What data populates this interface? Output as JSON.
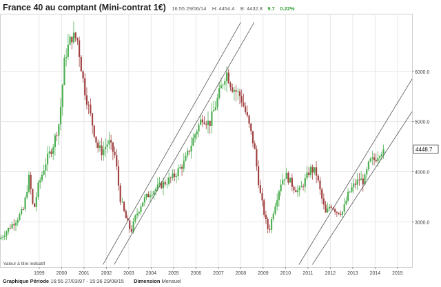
{
  "header": {
    "title": "France 40 au comptant (Mini-contrat 1€)",
    "time": "16:55 29/06/14",
    "high_label": "H:",
    "high": "4454.4",
    "bid_label": "B:",
    "bid": "4432.8",
    "change": "9.7",
    "change_pct": "0.22%"
  },
  "footer": {
    "period_label": "Graphique Période",
    "period_value": "16:55 27/03/97 - 15:36 29/08/15",
    "dimension_label": "Dimension",
    "dimension_value": "Mensuel"
  },
  "chart_data": {
    "type": "candlestick",
    "note_label": "Valeur à titre indicatif",
    "last_price_label": "4448.7",
    "last_price": 4448.7,
    "xlim": [
      1997.25,
      2015.65
    ],
    "ylim": [
      2100,
      7150
    ],
    "x_ticks": [
      {
        "label": "1999",
        "value": 1999.0
      },
      {
        "label": "2000",
        "value": 2000.0
      },
      {
        "label": "2001",
        "value": 2001.0
      },
      {
        "label": "2002",
        "value": 2002.0
      },
      {
        "label": "2003",
        "value": 2003.0
      },
      {
        "label": "2004",
        "value": 2004.0
      },
      {
        "label": "2005",
        "value": 2005.0
      },
      {
        "label": "2006",
        "value": 2006.0
      },
      {
        "label": "2007",
        "value": 2007.0
      },
      {
        "label": "2008",
        "value": 2008.0
      },
      {
        "label": "2009",
        "value": 2009.0
      },
      {
        "label": "2010",
        "value": 2010.0
      },
      {
        "label": "2011",
        "value": 2011.0
      },
      {
        "label": "2012",
        "value": 2012.0
      },
      {
        "label": "2013",
        "value": 2013.0
      },
      {
        "label": "2014",
        "value": 2014.0
      },
      {
        "label": "2015",
        "value": 2015.0
      }
    ],
    "y_ticks": [
      {
        "label": "3000.0",
        "value": 3000
      },
      {
        "label": "4000.0",
        "value": 4000
      },
      {
        "label": "5000.0",
        "value": 5000
      },
      {
        "label": "6000.0",
        "value": 6000
      }
    ],
    "anchors": [
      [
        1997.25,
        2660
      ],
      [
        1997.6,
        2850
      ],
      [
        1998.0,
        3050
      ],
      [
        1998.3,
        3250
      ],
      [
        1998.55,
        3900
      ],
      [
        1998.75,
        3200
      ],
      [
        1998.95,
        3700
      ],
      [
        1999.3,
        4200
      ],
      [
        1999.6,
        4500
      ],
      [
        1999.9,
        5000
      ],
      [
        2000.15,
        6300
      ],
      [
        2000.45,
        6700
      ],
      [
        2000.7,
        6650
      ],
      [
        2001.0,
        5700
      ],
      [
        2001.3,
        5100
      ],
      [
        2001.6,
        4500
      ],
      [
        2001.8,
        4400
      ],
      [
        2002.1,
        4600
      ],
      [
        2002.4,
        4300
      ],
      [
        2002.6,
        3500
      ],
      [
        2002.85,
        3100
      ],
      [
        2003.1,
        2800
      ],
      [
        2003.3,
        3100
      ],
      [
        2003.6,
        3400
      ],
      [
        2004.0,
        3600
      ],
      [
        2004.5,
        3750
      ],
      [
        2005.0,
        3900
      ],
      [
        2005.5,
        4200
      ],
      [
        2006.0,
        4800
      ],
      [
        2006.3,
        5100
      ],
      [
        2006.6,
        4950
      ],
      [
        2007.0,
        5500
      ],
      [
        2007.35,
        6000
      ],
      [
        2007.6,
        5700
      ],
      [
        2008.0,
        5500
      ],
      [
        2008.3,
        5050
      ],
      [
        2008.6,
        4500
      ],
      [
        2008.85,
        3600
      ],
      [
        2009.1,
        3050
      ],
      [
        2009.25,
        2800
      ],
      [
        2009.5,
        3300
      ],
      [
        2009.8,
        3800
      ],
      [
        2010.0,
        3950
      ],
      [
        2010.35,
        3700
      ],
      [
        2010.6,
        3600
      ],
      [
        2010.9,
        3850
      ],
      [
        2011.1,
        4050
      ],
      [
        2011.35,
        4000
      ],
      [
        2011.6,
        3500
      ],
      [
        2011.8,
        3150
      ],
      [
        2012.0,
        3350
      ],
      [
        2012.3,
        3200
      ],
      [
        2012.55,
        3200
      ],
      [
        2012.8,
        3550
      ],
      [
        2013.0,
        3700
      ],
      [
        2013.3,
        3850
      ],
      [
        2013.5,
        3800
      ],
      [
        2013.75,
        4200
      ],
      [
        2014.0,
        4250
      ],
      [
        2014.2,
        4400
      ],
      [
        2014.45,
        4448.7
      ]
    ],
    "channels": [
      {
        "name": "channel-2003-2007",
        "lines": [
          {
            "from": [
              2001.85,
              2150
            ],
            "to": [
              2008.0,
              6980
            ]
          },
          {
            "from": [
              2002.35,
              2150
            ],
            "to": [
              2008.6,
              6980
            ]
          }
        ]
      },
      {
        "name": "channel-2012-2015",
        "lines": [
          {
            "from": [
              2010.6,
              2150
            ],
            "to": [
              2015.65,
              5850
            ]
          },
          {
            "from": [
              2011.2,
              2150
            ],
            "to": [
              2015.65,
              5200
            ]
          }
        ]
      }
    ],
    "grid": true,
    "y_axis_side": "right",
    "colors": {
      "up": "#4caf50",
      "down": "#a04040",
      "grid": "#e6e6e6",
      "channel": "#555555"
    }
  }
}
